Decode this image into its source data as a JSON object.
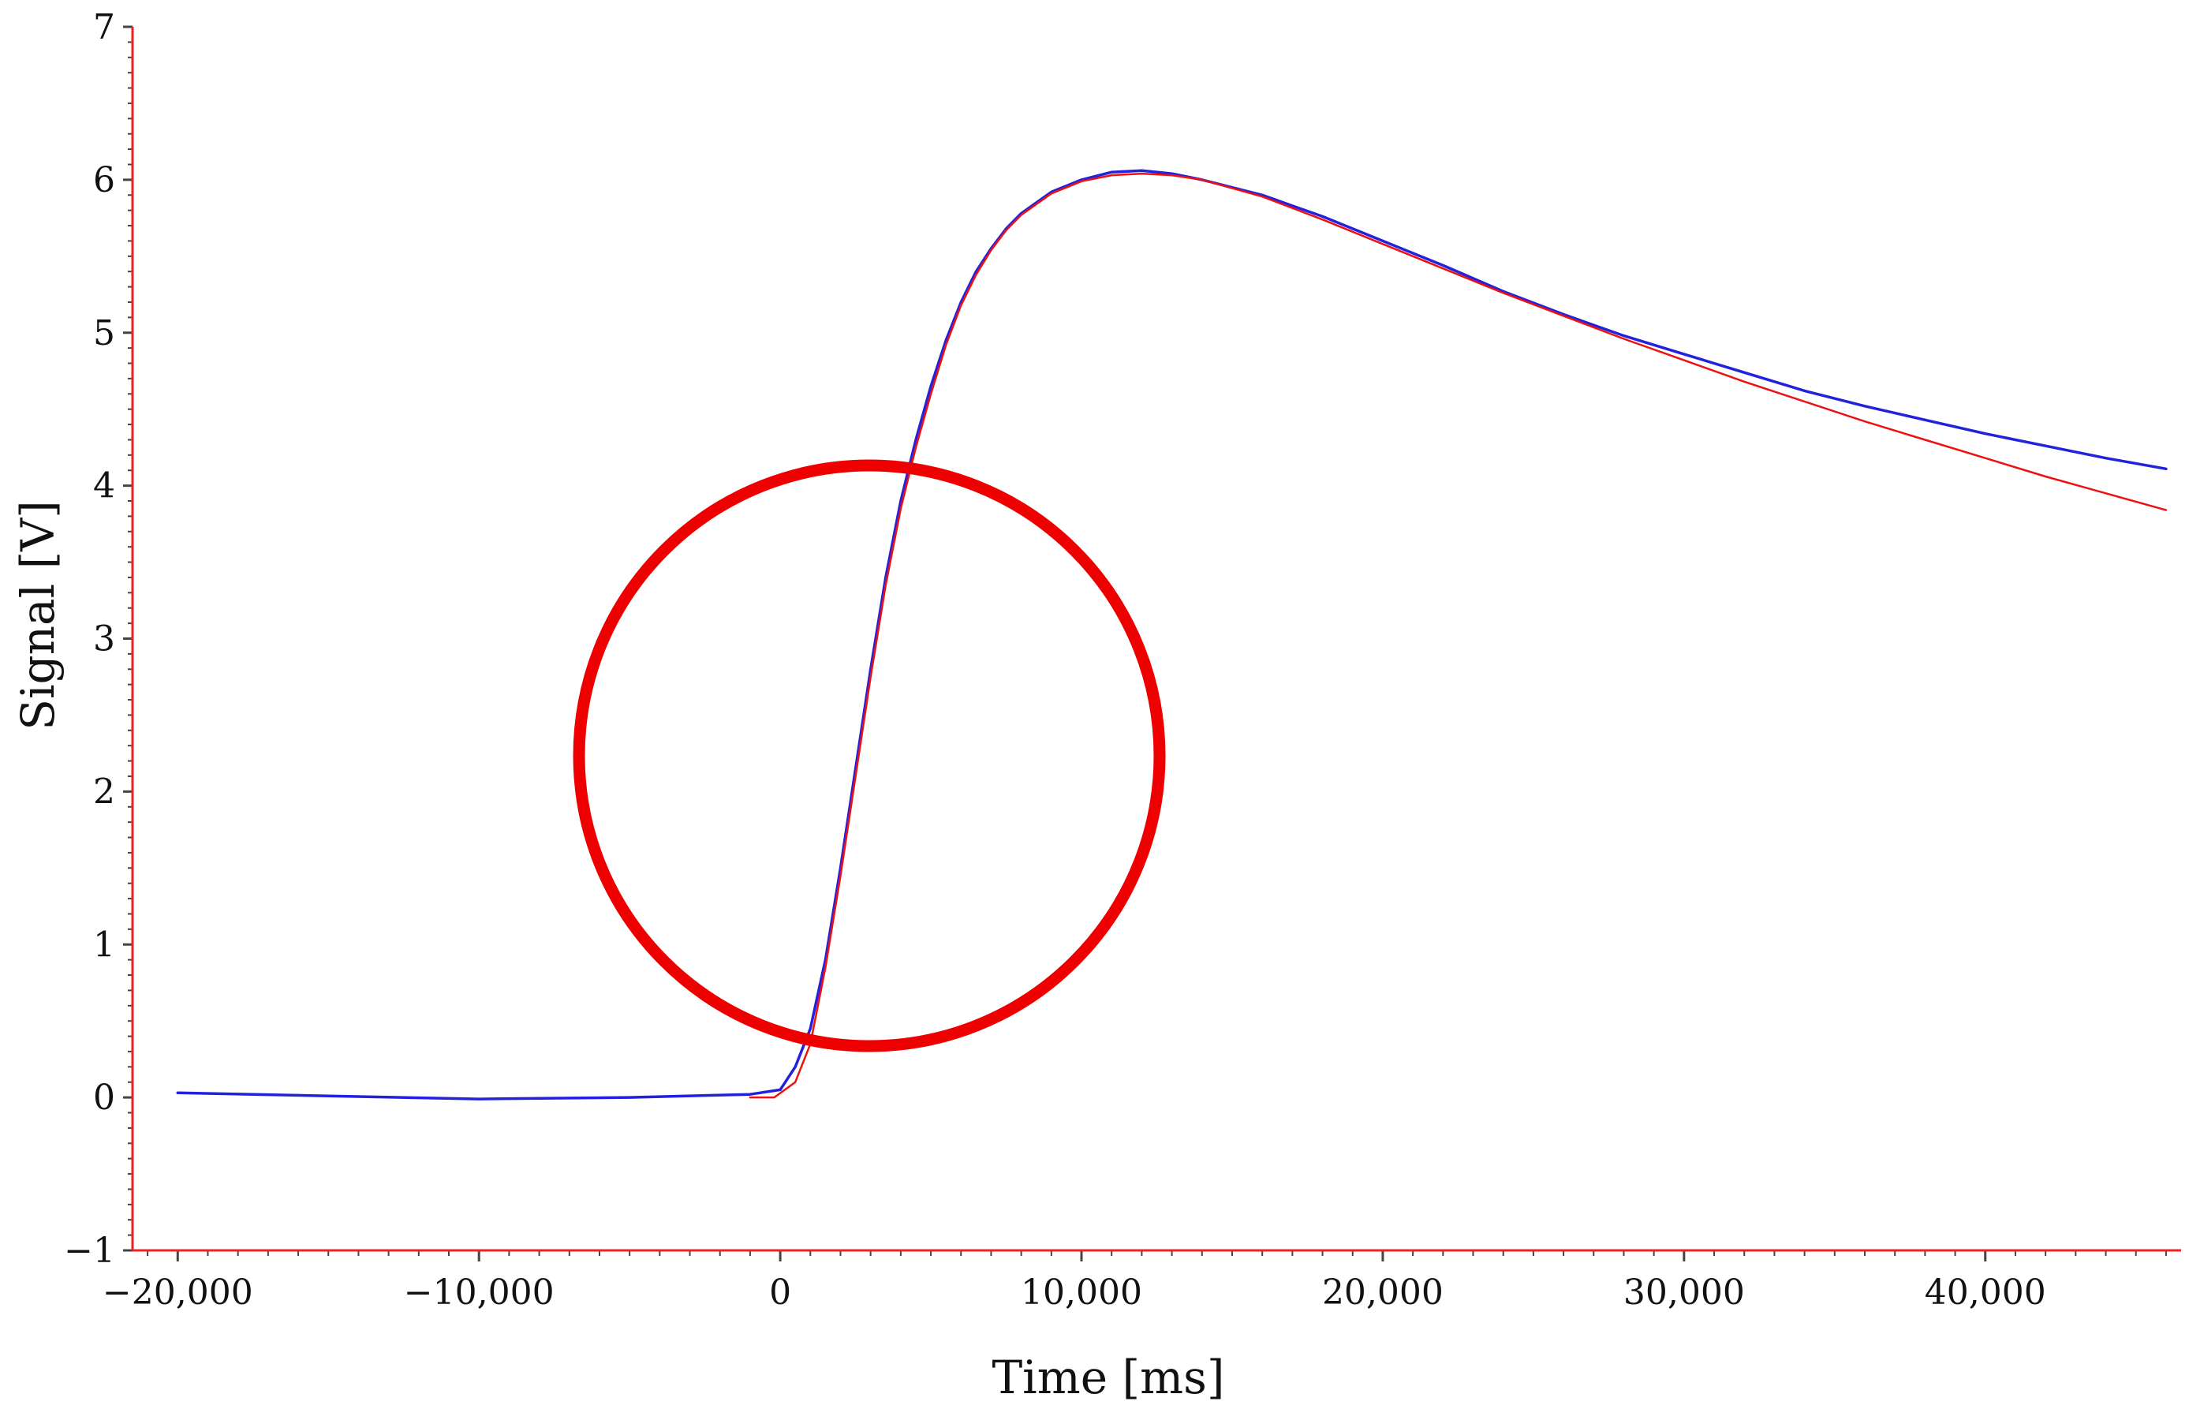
{
  "chart_data": {
    "type": "line",
    "xlabel": "Time [ms]",
    "ylabel": "Signal [V]",
    "xlim": [
      -21500,
      46500
    ],
    "ylim": [
      -1,
      7
    ],
    "x_ticks": [
      {
        "value": -20000,
        "label": "−20,000"
      },
      {
        "value": -10000,
        "label": "−10,000"
      },
      {
        "value": 0,
        "label": "0"
      },
      {
        "value": 10000,
        "label": "10,000"
      },
      {
        "value": 20000,
        "label": "20,000"
      },
      {
        "value": 30000,
        "label": "30,000"
      },
      {
        "value": 40000,
        "label": "40,000"
      }
    ],
    "y_ticks": [
      {
        "value": -1,
        "label": "−1"
      },
      {
        "value": 0,
        "label": "0"
      },
      {
        "value": 1,
        "label": "1"
      },
      {
        "value": 2,
        "label": "2"
      },
      {
        "value": 3,
        "label": "3"
      },
      {
        "value": 4,
        "label": "4"
      },
      {
        "value": 5,
        "label": "5"
      },
      {
        "value": 6,
        "label": "6"
      },
      {
        "value": 7,
        "label": "7"
      }
    ],
    "grid": false,
    "series": [
      {
        "color": "#2222dd",
        "x": [
          -20000,
          -15000,
          -10000,
          -5000,
          -1000,
          0,
          500,
          1000,
          1500,
          2000,
          2500,
          3000,
          3500,
          4000,
          4500,
          5000,
          5500,
          6000,
          6500,
          7000,
          7500,
          8000,
          9000,
          10000,
          11000,
          12000,
          13000,
          14000,
          16000,
          18000,
          20000,
          22000,
          24000,
          26000,
          28000,
          30000,
          32000,
          34000,
          36000,
          38000,
          40000,
          42000,
          44000,
          46000
        ],
        "y": [
          0.03,
          0.01,
          -0.01,
          0.0,
          0.02,
          0.05,
          0.2,
          0.45,
          0.9,
          1.5,
          2.15,
          2.8,
          3.4,
          3.9,
          4.3,
          4.65,
          4.95,
          5.2,
          5.4,
          5.55,
          5.68,
          5.78,
          5.92,
          6.0,
          6.05,
          6.06,
          6.04,
          6.0,
          5.9,
          5.76,
          5.6,
          5.44,
          5.27,
          5.12,
          4.98,
          4.86,
          4.74,
          4.62,
          4.52,
          4.43,
          4.34,
          4.26,
          4.18,
          4.11
        ]
      },
      {
        "color": "#ee1111",
        "x": [
          -1000,
          -200,
          500,
          1000,
          1500,
          2000,
          2500,
          3000,
          3500,
          4000,
          4500,
          5000,
          5500,
          6000,
          6500,
          7000,
          7500,
          8000,
          9000,
          10000,
          11000,
          12000,
          13000,
          14000,
          16000,
          18000,
          20000,
          22000,
          24000,
          26000,
          28000,
          30000,
          32000,
          34000,
          36000,
          38000,
          40000,
          42000,
          44000,
          46000
        ],
        "y": [
          0.0,
          0.0,
          0.1,
          0.35,
          0.85,
          1.45,
          2.1,
          2.75,
          3.35,
          3.85,
          4.25,
          4.6,
          4.92,
          5.18,
          5.38,
          5.54,
          5.67,
          5.77,
          5.91,
          5.99,
          6.03,
          6.04,
          6.03,
          6.0,
          5.89,
          5.74,
          5.58,
          5.42,
          5.26,
          5.11,
          4.96,
          4.82,
          4.68,
          4.55,
          4.42,
          4.3,
          4.18,
          4.06,
          3.95,
          3.84
        ]
      }
    ]
  }
}
